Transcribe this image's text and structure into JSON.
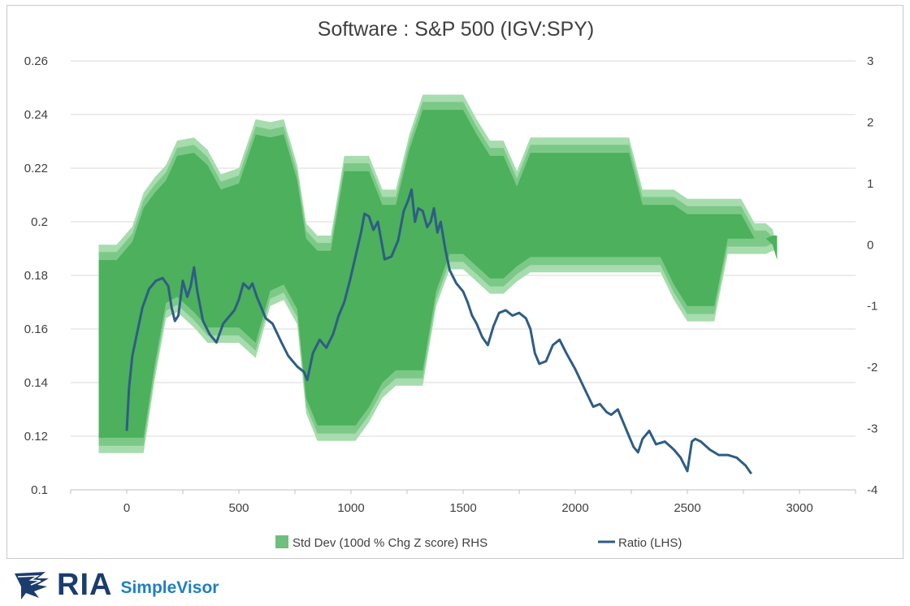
{
  "chart_data": {
    "type": "line",
    "title": "Software : S&P 500 (IGV:SPY)",
    "x_ticks": [
      "0",
      "500",
      "1000",
      "1500",
      "2000",
      "2500",
      "3000"
    ],
    "left_ticks": [
      "0.26",
      "0.24",
      "0.22",
      "0.2",
      "0.18",
      "0.16",
      "0.14",
      "0.12",
      "0.1"
    ],
    "right_ticks": [
      "3",
      "2",
      "1",
      "0",
      "-1",
      "-2",
      "-3",
      "-4"
    ],
    "xlim": [
      -250,
      3250
    ],
    "ylim_left": [
      0.1,
      0.26
    ],
    "ylim_right": [
      -4,
      3
    ],
    "grid": true,
    "legend_position": "bottom",
    "colors": {
      "band_light": "#a7dcae",
      "band_mid": "#7cc987",
      "band_dark": "#4cb05c",
      "ratio_line": "#2e5d84",
      "grid": "#d9d9d9"
    },
    "series": [
      {
        "name": "Std Dev (100d % Chg Z score) RHS",
        "axis": "right",
        "type": "band",
        "x": [
          -125,
          -45,
          25,
          75,
          125,
          175,
          225,
          300,
          360,
          420,
          500,
          575,
          640,
          700,
          760,
          800,
          850,
          910,
          970,
          1020,
          1080,
          1140,
          1200,
          1260,
          1320,
          1380,
          1440,
          1500,
          1560,
          1620,
          1680,
          1740,
          1800,
          1860,
          1940,
          2000,
          2060,
          2120,
          2180,
          2240,
          2300,
          2380,
          2440,
          2500,
          2560,
          2620,
          2680,
          2740,
          2800,
          2850,
          2880,
          2900
        ],
        "upper": [
          0.0,
          0.0,
          0.3,
          0.85,
          1.1,
          1.3,
          1.7,
          1.75,
          1.55,
          1.15,
          1.25,
          2.05,
          2.0,
          2.05,
          1.3,
          0.35,
          0.15,
          0.15,
          1.45,
          1.45,
          1.45,
          0.9,
          0.9,
          1.8,
          2.45,
          2.45,
          2.45,
          2.45,
          2.05,
          1.7,
          1.7,
          1.2,
          1.75,
          1.75,
          1.75,
          1.75,
          1.75,
          1.75,
          1.75,
          1.75,
          0.9,
          0.9,
          0.9,
          0.75,
          0.75,
          0.75,
          0.75,
          0.75,
          0.35,
          0.35,
          0.25,
          0.0
        ],
        "lower": [
          -3.4,
          -3.4,
          -3.4,
          -3.4,
          -2.2,
          -1.2,
          -1.1,
          -1.35,
          -1.6,
          -1.6,
          -1.6,
          -1.85,
          -1.0,
          -0.9,
          -1.3,
          -2.75,
          -3.2,
          -3.2,
          -3.2,
          -3.2,
          -2.9,
          -2.5,
          -2.3,
          -2.3,
          -2.3,
          -1.0,
          -0.4,
          -0.4,
          -0.6,
          -0.8,
          -0.8,
          -0.6,
          -0.45,
          -0.45,
          -0.45,
          -0.45,
          -0.45,
          -0.45,
          -0.45,
          -0.45,
          -0.45,
          -0.45,
          -0.9,
          -1.25,
          -1.25,
          -1.25,
          -0.15,
          -0.15,
          -0.15,
          -0.15,
          -0.1,
          -0.1
        ]
      },
      {
        "name": "Ratio (LHS)",
        "axis": "left",
        "type": "line",
        "x": [
          0,
          10,
          25,
          45,
          70,
          100,
          130,
          160,
          185,
          200,
          215,
          230,
          250,
          270,
          285,
          300,
          315,
          340,
          370,
          400,
          430,
          460,
          480,
          500,
          520,
          545,
          560,
          580,
          600,
          620,
          650,
          690,
          720,
          760,
          790,
          805,
          830,
          860,
          890,
          920,
          945,
          970,
          995,
          1020,
          1045,
          1060,
          1080,
          1100,
          1120,
          1150,
          1180,
          1210,
          1235,
          1255,
          1270,
          1285,
          1300,
          1320,
          1340,
          1355,
          1370,
          1385,
          1400,
          1420,
          1440,
          1470,
          1500,
          1520,
          1540,
          1560,
          1585,
          1610,
          1635,
          1660,
          1690,
          1720,
          1750,
          1780,
          1800,
          1820,
          1840,
          1870,
          1900,
          1930,
          1960,
          2000,
          2040,
          2080,
          2110,
          2140,
          2160,
          2190,
          2220,
          2240,
          2260,
          2280,
          2300,
          2330,
          2360,
          2400,
          2440,
          2470,
          2500,
          2520,
          2535,
          2560,
          2600,
          2640,
          2680,
          2720,
          2760,
          2785
        ],
        "y": [
          0.122,
          0.138,
          0.15,
          0.158,
          0.168,
          0.175,
          0.178,
          0.179,
          0.176,
          0.168,
          0.163,
          0.165,
          0.178,
          0.172,
          0.176,
          0.183,
          0.174,
          0.163,
          0.158,
          0.155,
          0.162,
          0.165,
          0.167,
          0.171,
          0.177,
          0.175,
          0.177,
          0.172,
          0.168,
          0.164,
          0.162,
          0.155,
          0.15,
          0.146,
          0.144,
          0.141,
          0.151,
          0.156,
          0.153,
          0.158,
          0.165,
          0.17,
          0.178,
          0.187,
          0.196,
          0.203,
          0.202,
          0.197,
          0.2,
          0.186,
          0.187,
          0.193,
          0.204,
          0.208,
          0.212,
          0.2,
          0.205,
          0.204,
          0.198,
          0.2,
          0.205,
          0.196,
          0.2,
          0.19,
          0.182,
          0.177,
          0.174,
          0.17,
          0.165,
          0.162,
          0.157,
          0.154,
          0.161,
          0.166,
          0.167,
          0.165,
          0.166,
          0.164,
          0.16,
          0.151,
          0.147,
          0.148,
          0.154,
          0.156,
          0.151,
          0.145,
          0.138,
          0.131,
          0.132,
          0.129,
          0.128,
          0.13,
          0.124,
          0.12,
          0.116,
          0.114,
          0.119,
          0.122,
          0.117,
          0.118,
          0.115,
          0.112,
          0.107,
          0.118,
          0.119,
          0.118,
          0.115,
          0.113,
          0.113,
          0.112,
          0.109,
          0.106
        ]
      }
    ]
  },
  "legend": {
    "band_label": "Std Dev (100d % Chg Z score) RHS",
    "line_label": "Ratio (LHS)"
  },
  "brand": {
    "ria": "RIA",
    "simplevisor": "SimpleVisor"
  }
}
